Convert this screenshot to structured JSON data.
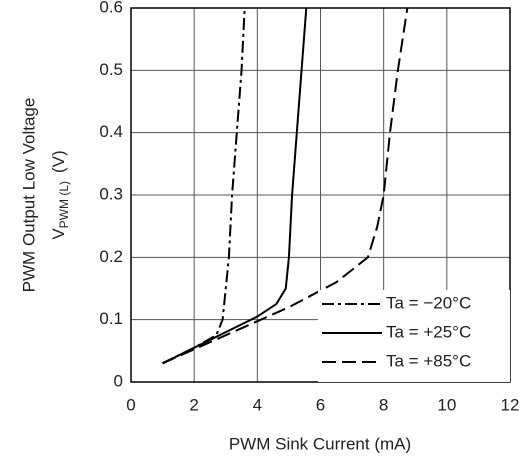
{
  "chart_data": {
    "type": "line",
    "ylabel": "PWM Output Low Voltage",
    "ylabel_symbol": "V",
    "ylabel_subscript": "PWM (L)",
    "ylabel_unit": "(V)",
    "xlabel": "PWM Sink Current  (mA)",
    "xlim": [
      0,
      12
    ],
    "xticks": [
      0,
      2,
      4,
      6,
      8,
      10,
      12
    ],
    "ylim": [
      0,
      0.6
    ],
    "yticks": [
      0,
      0.1,
      0.2,
      0.3,
      0.4,
      0.5,
      0.6
    ],
    "grid": true,
    "legend": "lower right",
    "series": [
      {
        "name": "Ta = −20°C",
        "color": "#000000",
        "dash": "dashdot",
        "x": [
          1,
          2,
          2.7,
          2.9,
          3.0,
          3.1,
          3.2,
          3.35,
          3.5,
          3.6
        ],
        "values": [
          0.03,
          0.055,
          0.075,
          0.1,
          0.15,
          0.2,
          0.3,
          0.4,
          0.5,
          0.6
        ]
      },
      {
        "name": "Ta = +25°C",
        "color": "#000000",
        "dash": "solid",
        "x": [
          1,
          2,
          3,
          4,
          4.6,
          4.9,
          5.0,
          5.1,
          5.25,
          5.4,
          5.55
        ],
        "values": [
          0.03,
          0.055,
          0.08,
          0.105,
          0.125,
          0.15,
          0.2,
          0.3,
          0.4,
          0.5,
          0.6
        ]
      },
      {
        "name": "Ta = +85°C",
        "color": "#000000",
        "dash": "dashed",
        "x": [
          1,
          3,
          5,
          6.5,
          7.5,
          7.8,
          8.0,
          8.2,
          8.45,
          8.75
        ],
        "values": [
          0.03,
          0.075,
          0.12,
          0.16,
          0.2,
          0.25,
          0.3,
          0.4,
          0.5,
          0.6
        ]
      }
    ]
  }
}
